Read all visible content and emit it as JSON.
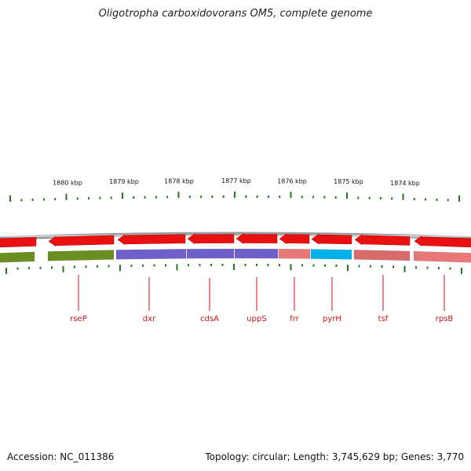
{
  "title": "Oligotropha carboxidovorans OM5, complete genome",
  "footer": {
    "accession": "Accession: NC_011386",
    "summary": "Topology: circular; Length: 3,745,629 bp; Genes: 3,770"
  },
  "colors": {
    "backbone": "#8a8a8a",
    "gene_red": "#e81010",
    "tick": "#1f7a1f",
    "label": "#cc1111",
    "olive": "#6b8e23",
    "purple": "#7060cc",
    "salmon": "#e87878",
    "cyan": "#00b0e8",
    "rose": "#d86a6a"
  },
  "ruler": {
    "labels": [
      "1880 kbp",
      "1879 kbp",
      "1878 kbp",
      "1877 kbp",
      "1876 kbp",
      "1875 kbp",
      "1874 kbp"
    ]
  },
  "genes": [
    {
      "name": "rseP",
      "color": "olive"
    },
    {
      "name": "dxr",
      "color": "purple"
    },
    {
      "name": "cdsA",
      "color": "purple"
    },
    {
      "name": "uppS",
      "color": "purple"
    },
    {
      "name": "frr",
      "color": "salmon"
    },
    {
      "name": "pyrH",
      "color": "cyan"
    },
    {
      "name": "tsf",
      "color": "rose"
    },
    {
      "name": "rpsB",
      "color": "salmon"
    }
  ]
}
